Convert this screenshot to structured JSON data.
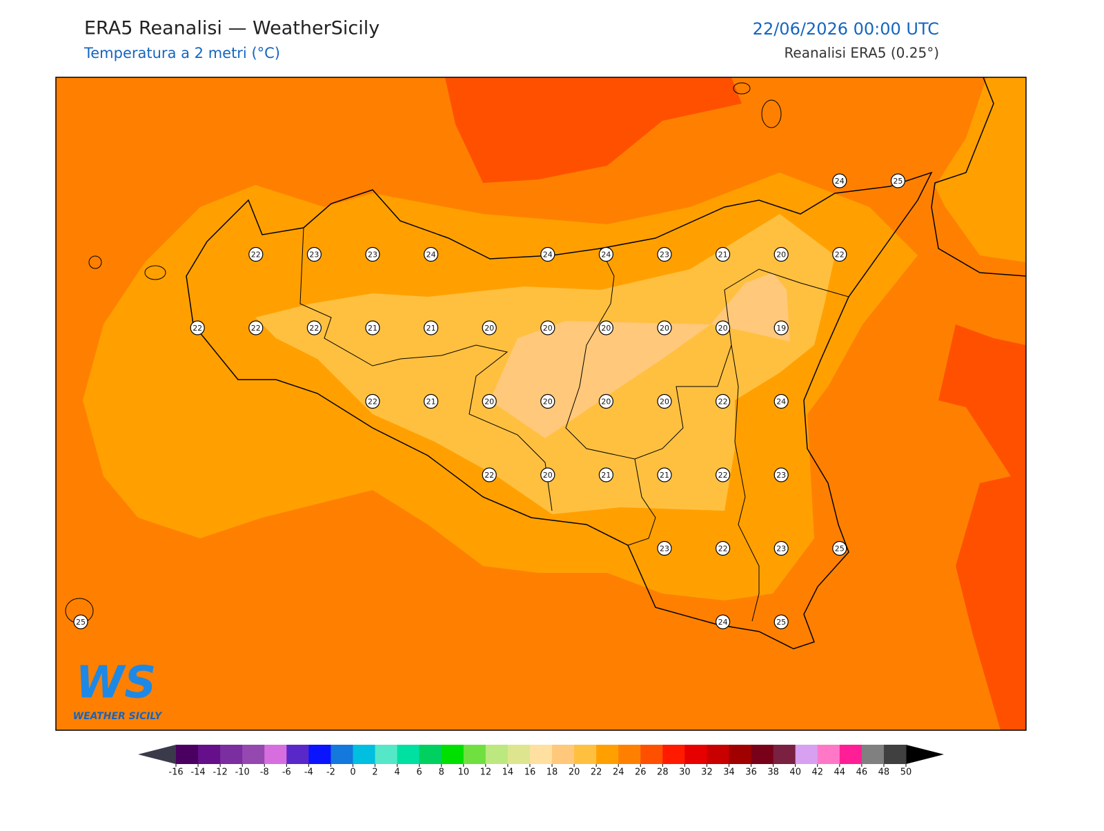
{
  "header": {
    "title": "ERA5 Reanalisi — WeatherSicily",
    "subtitle": "Temperatura a 2 metri (°C)",
    "date": "22/06/2026 00:00 UTC",
    "source": "Reanalisi ERA5 (0.25°)"
  },
  "logo": {
    "mark": "WS",
    "name": "WEATHER SICILY"
  },
  "stations": [
    [
      null,
      null,
      null,
      null,
      null,
      null,
      null,
      null,
      null,
      null,
      null,
      null,
      null,
      24,
      25
    ],
    [
      null,
      null,
      null,
      22,
      23,
      23,
      24,
      null,
      24,
      24,
      23,
      21,
      20,
      22,
      null
    ],
    [
      null,
      null,
      22,
      22,
      22,
      21,
      21,
      20,
      20,
      20,
      20,
      20,
      19,
      null,
      null
    ],
    [
      null,
      null,
      null,
      null,
      null,
      22,
      21,
      20,
      20,
      20,
      20,
      22,
      24,
      null,
      null
    ],
    [
      null,
      null,
      null,
      null,
      null,
      null,
      null,
      22,
      20,
      21,
      21,
      22,
      23,
      null,
      null
    ],
    [
      null,
      null,
      null,
      null,
      null,
      null,
      null,
      null,
      null,
      null,
      23,
      22,
      23,
      25,
      null
    ],
    [
      25,
      null,
      null,
      null,
      null,
      null,
      null,
      null,
      null,
      null,
      null,
      24,
      25,
      null,
      null
    ]
  ],
  "colorbar": {
    "levels": [
      -16,
      -14,
      -12,
      -10,
      -8,
      -6,
      -4,
      -2,
      0,
      2,
      4,
      6,
      8,
      10,
      12,
      14,
      16,
      18,
      20,
      22,
      24,
      26,
      28,
      30,
      32,
      34,
      36,
      38,
      40,
      42,
      44,
      46,
      48,
      50
    ],
    "colors": [
      "#4a0060",
      "#65108a",
      "#7b2ea0",
      "#9548b0",
      "#d76ee0",
      "#5a28c8",
      "#0a14ff",
      "#1478dc",
      "#00bfe0",
      "#55e8c8",
      "#00e0a0",
      "#00d060",
      "#00e000",
      "#70e040",
      "#bde880",
      "#dde68e",
      "#ffe0a0",
      "#ffc87a",
      "#ffc040",
      "#ffa000",
      "#ff8000",
      "#ff5000",
      "#ff1a00",
      "#e60000",
      "#c80000",
      "#a00000",
      "#780018",
      "#7a2040",
      "#d8a0f0",
      "#ff78c8",
      "#ff1e96",
      "#808080",
      "#404040"
    ],
    "under_color": "#3a3a4a",
    "over_color": "#000000"
  }
}
